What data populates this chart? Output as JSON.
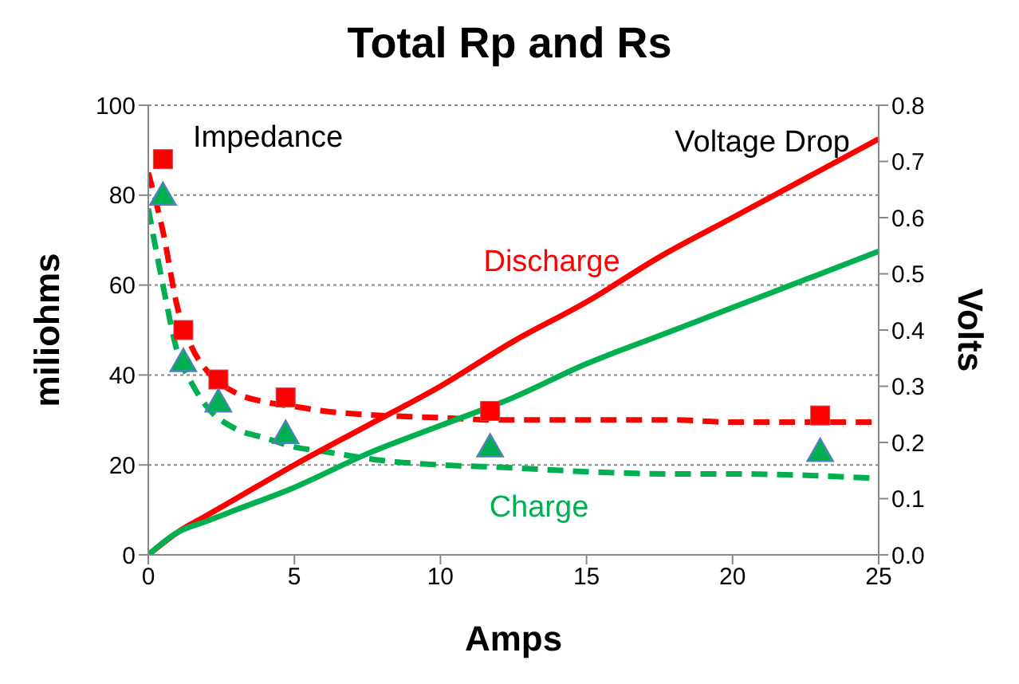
{
  "chart_data": {
    "type": "line",
    "title": "Total Rp and Rs",
    "xlabel": "Amps",
    "ylabel": "miliohms",
    "y2label": "Volts",
    "annotations": [
      "Impedance",
      "Voltage Drop",
      "Discharge",
      "Charge"
    ],
    "xlim": [
      0,
      25
    ],
    "xticks": [
      0,
      5,
      10,
      15,
      20,
      25
    ],
    "ylim": [
      0,
      100
    ],
    "yticks": [
      0,
      20,
      40,
      60,
      80,
      100
    ],
    "y2lim": [
      0,
      0.8
    ],
    "y2ticks": [
      {
        "value": 0,
        "label": "0.0"
      },
      0.1,
      0.2,
      0.3,
      0.4,
      0.5,
      0.6,
      0.7,
      0.8
    ],
    "grid": "y",
    "legend": false,
    "series": [
      {
        "type": "scatter",
        "marker": "square",
        "color": "#ff0000",
        "x": [
          0.5,
          1.2,
          2.4,
          4.7,
          11.7,
          23
        ],
        "values": [
          88,
          50,
          39,
          35,
          32,
          31
        ]
      },
      {
        "type": "scatter",
        "marker": "triangle",
        "color": "#00b050",
        "x": [
          0.5,
          1.2,
          2.4,
          4.7,
          11.7,
          23
        ],
        "values": [
          80,
          43,
          34,
          27,
          24,
          23
        ]
      },
      {
        "type": "line",
        "line_style": "dashed",
        "color": "#ff0000",
        "x": [
          0,
          0.5,
          1,
          1.5,
          2,
          3,
          4,
          5,
          6,
          8,
          10,
          12,
          15,
          18,
          20,
          25
        ],
        "values": [
          85,
          72,
          55,
          46,
          41,
          36,
          34,
          33,
          32,
          31,
          30.5,
          30,
          30,
          30,
          29.5,
          29.5
        ]
      },
      {
        "type": "line",
        "line_style": "dashed",
        "color": "#00b050",
        "x": [
          0,
          0.5,
          1,
          1.5,
          2,
          3,
          4,
          5,
          6,
          8,
          10,
          12,
          15,
          18,
          20,
          25
        ],
        "values": [
          77,
          60,
          45,
          38,
          33,
          28,
          26,
          24,
          23,
          21,
          20,
          19.5,
          18.5,
          18,
          18,
          17
        ]
      },
      {
        "type": "line",
        "line_style": "solid",
        "axis": "y2",
        "color": "#ff0000",
        "x": [
          0,
          1,
          2,
          3,
          5,
          7.5,
          10,
          12.5,
          15,
          17.5,
          20,
          22.5,
          25
        ],
        "values": [
          0,
          0.04,
          0.07,
          0.1,
          0.16,
          0.23,
          0.3,
          0.38,
          0.45,
          0.53,
          0.6,
          0.67,
          0.74
        ]
      },
      {
        "type": "line",
        "line_style": "solid",
        "axis": "y2",
        "color": "#00b050",
        "x": [
          0,
          1,
          2,
          3,
          5,
          7.5,
          10,
          12.5,
          15,
          17.5,
          20,
          22.5,
          25
        ],
        "values": [
          0,
          0.04,
          0.06,
          0.08,
          0.12,
          0.18,
          0.23,
          0.28,
          0.34,
          0.39,
          0.44,
          0.49,
          0.54
        ]
      }
    ]
  }
}
